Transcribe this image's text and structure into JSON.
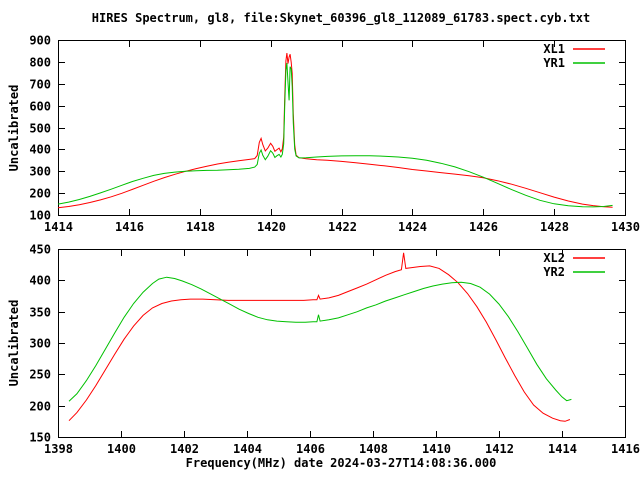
{
  "title": "HIRES Spectrum, gl8, file:Skynet_60396_gl8_112089_61783.spect.cyb.txt",
  "chart_data": [
    {
      "type": "line",
      "panel": "top",
      "xlim": [
        1414,
        1430
      ],
      "xtick_step": 2,
      "ylim": [
        100,
        900
      ],
      "ytick_step": 100,
      "xlabel": "",
      "ylabel": "Uncalibrated",
      "grid": false,
      "legend_position": "top-right",
      "series": [
        {
          "name": "XL1",
          "color": "#ff0000",
          "points": [
            [
              1414.0,
              133
            ],
            [
              1414.3,
              139
            ],
            [
              1414.6,
              147
            ],
            [
              1414.9,
              157
            ],
            [
              1415.2,
              169
            ],
            [
              1415.5,
              183
            ],
            [
              1415.8,
              199
            ],
            [
              1416.1,
              217
            ],
            [
              1416.4,
              236
            ],
            [
              1416.7,
              254
            ],
            [
              1417.0,
              271
            ],
            [
              1417.3,
              286
            ],
            [
              1417.6,
              300
            ],
            [
              1417.9,
              312
            ],
            [
              1418.2,
              323
            ],
            [
              1418.5,
              333
            ],
            [
              1418.8,
              341
            ],
            [
              1419.1,
              348
            ],
            [
              1419.4,
              354
            ],
            [
              1419.55,
              358
            ],
            [
              1419.62,
              372
            ],
            [
              1419.68,
              432
            ],
            [
              1419.73,
              450
            ],
            [
              1419.78,
              422
            ],
            [
              1419.85,
              393
            ],
            [
              1419.92,
              406
            ],
            [
              1420.0,
              428
            ],
            [
              1420.06,
              414
            ],
            [
              1420.12,
              391
            ],
            [
              1420.18,
              399
            ],
            [
              1420.24,
              406
            ],
            [
              1420.29,
              389
            ],
            [
              1420.33,
              402
            ],
            [
              1420.37,
              455
            ],
            [
              1420.4,
              650
            ],
            [
              1420.43,
              805
            ],
            [
              1420.46,
              840
            ],
            [
              1420.49,
              792
            ],
            [
              1420.52,
              822
            ],
            [
              1420.55,
              835
            ],
            [
              1420.58,
              798
            ],
            [
              1420.61,
              748
            ],
            [
              1420.64,
              560
            ],
            [
              1420.68,
              420
            ],
            [
              1420.72,
              374
            ],
            [
              1420.8,
              362
            ],
            [
              1421.0,
              357
            ],
            [
              1421.3,
              353
            ],
            [
              1421.6,
              350
            ],
            [
              1422.0,
              345
            ],
            [
              1422.4,
              339
            ],
            [
              1422.8,
              332
            ],
            [
              1423.2,
              325
            ],
            [
              1423.6,
              317
            ],
            [
              1424.0,
              308
            ],
            [
              1424.4,
              301
            ],
            [
              1424.8,
              294
            ],
            [
              1425.2,
              287
            ],
            [
              1425.6,
              279
            ],
            [
              1426.0,
              270
            ],
            [
              1426.4,
              257
            ],
            [
              1426.8,
              241
            ],
            [
              1427.2,
              222
            ],
            [
              1427.6,
              202
            ],
            [
              1428.0,
              182
            ],
            [
              1428.4,
              164
            ],
            [
              1428.8,
              150
            ],
            [
              1429.1,
              143
            ],
            [
              1429.4,
              138
            ],
            [
              1429.65,
              135
            ]
          ]
        },
        {
          "name": "YR1",
          "color": "#00c000",
          "points": [
            [
              1414.0,
              150
            ],
            [
              1414.3,
              159
            ],
            [
              1414.6,
              171
            ],
            [
              1414.9,
              185
            ],
            [
              1415.2,
              201
            ],
            [
              1415.5,
              218
            ],
            [
              1415.8,
              236
            ],
            [
              1416.1,
              253
            ],
            [
              1416.4,
              268
            ],
            [
              1416.7,
              281
            ],
            [
              1417.0,
              290
            ],
            [
              1417.3,
              296
            ],
            [
              1417.6,
              300
            ],
            [
              1417.9,
              302
            ],
            [
              1418.2,
              304
            ],
            [
              1418.5,
              305
            ],
            [
              1418.8,
              307
            ],
            [
              1419.1,
              309
            ],
            [
              1419.4,
              313
            ],
            [
              1419.55,
              319
            ],
            [
              1419.62,
              331
            ],
            [
              1419.68,
              382
            ],
            [
              1419.73,
              397
            ],
            [
              1419.78,
              373
            ],
            [
              1419.85,
              353
            ],
            [
              1419.92,
              369
            ],
            [
              1420.0,
              394
            ],
            [
              1420.06,
              383
            ],
            [
              1420.12,
              363
            ],
            [
              1420.18,
              371
            ],
            [
              1420.24,
              377
            ],
            [
              1420.29,
              365
            ],
            [
              1420.33,
              377
            ],
            [
              1420.37,
              425
            ],
            [
              1420.4,
              610
            ],
            [
              1420.43,
              760
            ],
            [
              1420.46,
              795
            ],
            [
              1420.49,
              706
            ],
            [
              1420.52,
              624
            ],
            [
              1420.55,
              778
            ],
            [
              1420.58,
              768
            ],
            [
              1420.61,
              688
            ],
            [
              1420.64,
              520
            ],
            [
              1420.68,
              402
            ],
            [
              1420.72,
              370
            ],
            [
              1420.8,
              361
            ],
            [
              1421.0,
              362
            ],
            [
              1421.3,
              365
            ],
            [
              1421.6,
              368
            ],
            [
              1422.0,
              370
            ],
            [
              1422.4,
              371
            ],
            [
              1422.8,
              371
            ],
            [
              1423.2,
              369
            ],
            [
              1423.6,
              365
            ],
            [
              1424.0,
              359
            ],
            [
              1424.4,
              350
            ],
            [
              1424.8,
              337
            ],
            [
              1425.2,
              320
            ],
            [
              1425.6,
              298
            ],
            [
              1426.0,
              273
            ],
            [
              1426.4,
              245
            ],
            [
              1426.8,
              216
            ],
            [
              1427.2,
              190
            ],
            [
              1427.6,
              167
            ],
            [
              1428.0,
              151
            ],
            [
              1428.4,
              142
            ],
            [
              1428.8,
              138
            ],
            [
              1429.1,
              137
            ],
            [
              1429.4,
              139
            ],
            [
              1429.65,
              144
            ]
          ]
        }
      ]
    },
    {
      "type": "line",
      "panel": "bottom",
      "xlim": [
        1398,
        1416
      ],
      "xtick_step": 2,
      "ylim": [
        150,
        450
      ],
      "ytick_step": 50,
      "xlabel": "Frequency(MHz) date 2024-03-27T14:08:36.000",
      "ylabel": "Uncalibrated",
      "grid": false,
      "legend_position": "top-right",
      "series": [
        {
          "name": "XL2",
          "color": "#ff0000",
          "points": [
            [
              1398.35,
              176
            ],
            [
              1398.6,
              189
            ],
            [
              1398.9,
              209
            ],
            [
              1399.2,
              232
            ],
            [
              1399.5,
              257
            ],
            [
              1399.8,
              282
            ],
            [
              1400.1,
              306
            ],
            [
              1400.4,
              327
            ],
            [
              1400.7,
              344
            ],
            [
              1401.0,
              356
            ],
            [
              1401.3,
              363
            ],
            [
              1401.6,
              367
            ],
            [
              1401.9,
              369
            ],
            [
              1402.2,
              370
            ],
            [
              1402.6,
              370
            ],
            [
              1403.0,
              369
            ],
            [
              1403.4,
              368
            ],
            [
              1403.8,
              368
            ],
            [
              1404.2,
              368
            ],
            [
              1404.6,
              368
            ],
            [
              1405.0,
              368
            ],
            [
              1405.4,
              368
            ],
            [
              1405.8,
              368
            ],
            [
              1406.1,
              369
            ],
            [
              1406.22,
              369
            ],
            [
              1406.27,
              376
            ],
            [
              1406.32,
              370
            ],
            [
              1406.6,
              372
            ],
            [
              1406.9,
              376
            ],
            [
              1407.2,
              382
            ],
            [
              1407.5,
              388
            ],
            [
              1407.8,
              394
            ],
            [
              1408.1,
              401
            ],
            [
              1408.4,
              408
            ],
            [
              1408.7,
              414
            ],
            [
              1408.9,
              417
            ],
            [
              1408.97,
              444
            ],
            [
              1409.04,
              419
            ],
            [
              1409.2,
              420
            ],
            [
              1409.5,
              422
            ],
            [
              1409.8,
              423
            ],
            [
              1410.1,
              419
            ],
            [
              1410.4,
              409
            ],
            [
              1410.7,
              396
            ],
            [
              1411.0,
              379
            ],
            [
              1411.3,
              358
            ],
            [
              1411.6,
              333
            ],
            [
              1411.9,
              305
            ],
            [
              1412.2,
              276
            ],
            [
              1412.5,
              248
            ],
            [
              1412.8,
              222
            ],
            [
              1413.1,
              201
            ],
            [
              1413.4,
              188
            ],
            [
              1413.7,
              180
            ],
            [
              1413.95,
              176
            ],
            [
              1414.1,
              175
            ],
            [
              1414.25,
              178
            ]
          ]
        },
        {
          "name": "YR2",
          "color": "#00c000",
          "points": [
            [
              1398.35,
              207
            ],
            [
              1398.6,
              219
            ],
            [
              1398.9,
              240
            ],
            [
              1399.2,
              264
            ],
            [
              1399.5,
              290
            ],
            [
              1399.8,
              316
            ],
            [
              1400.1,
              341
            ],
            [
              1400.4,
              363
            ],
            [
              1400.7,
              381
            ],
            [
              1401.0,
              395
            ],
            [
              1401.2,
              402
            ],
            [
              1401.45,
              405
            ],
            [
              1401.7,
              403
            ],
            [
              1401.95,
              399
            ],
            [
              1402.25,
              393
            ],
            [
              1402.55,
              386
            ],
            [
              1402.85,
              378
            ],
            [
              1403.15,
              370
            ],
            [
              1403.45,
              362
            ],
            [
              1403.75,
              354
            ],
            [
              1404.05,
              347
            ],
            [
              1404.35,
              341
            ],
            [
              1404.65,
              337
            ],
            [
              1404.95,
              335
            ],
            [
              1405.25,
              334
            ],
            [
              1405.55,
              333
            ],
            [
              1405.85,
              333
            ],
            [
              1406.1,
              334
            ],
            [
              1406.22,
              334
            ],
            [
              1406.27,
              345
            ],
            [
              1406.32,
              335
            ],
            [
              1406.6,
              337
            ],
            [
              1406.9,
              340
            ],
            [
              1407.2,
              345
            ],
            [
              1407.5,
              350
            ],
            [
              1407.8,
              356
            ],
            [
              1408.1,
              361
            ],
            [
              1408.4,
              367
            ],
            [
              1408.7,
              372
            ],
            [
              1409.0,
              377
            ],
            [
              1409.3,
              382
            ],
            [
              1409.6,
              387
            ],
            [
              1409.9,
              391
            ],
            [
              1410.2,
              394
            ],
            [
              1410.5,
              396
            ],
            [
              1410.8,
              397
            ],
            [
              1411.1,
              395
            ],
            [
              1411.4,
              389
            ],
            [
              1411.7,
              378
            ],
            [
              1412.0,
              362
            ],
            [
              1412.3,
              342
            ],
            [
              1412.6,
              318
            ],
            [
              1412.9,
              292
            ],
            [
              1413.2,
              266
            ],
            [
              1413.5,
              243
            ],
            [
              1413.8,
              225
            ],
            [
              1414.0,
              214
            ],
            [
              1414.15,
              208
            ],
            [
              1414.3,
              210
            ]
          ]
        }
      ]
    }
  ]
}
